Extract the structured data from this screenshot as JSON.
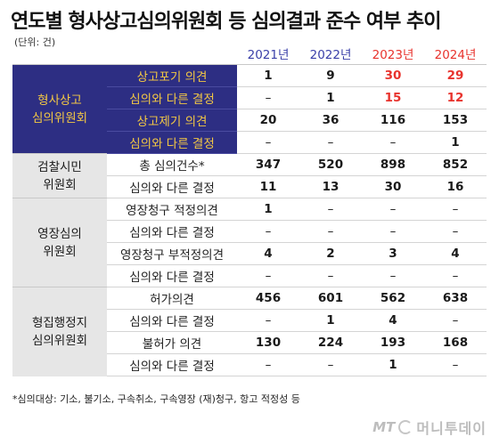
{
  "title": "연도별 형사상고심의위원회 등 심의결과 준수 여부 추이",
  "unit": "(단위: 건)",
  "years": [
    "2021년",
    "2022년",
    "2023년",
    "2024년"
  ],
  "highlight_color": "#e8332d",
  "groups": [
    {
      "label": "형사상고\n심의위원회",
      "rows": [
        {
          "item": "상고포기 의견",
          "values": [
            "1",
            "9",
            "30",
            "29"
          ]
        },
        {
          "item": "심의와 다른 결정",
          "values": [
            "–",
            "1",
            "15",
            "12"
          ]
        },
        {
          "item": "상고제기 의견",
          "values": [
            "20",
            "36",
            "116",
            "153"
          ]
        },
        {
          "item": "심의와 다른 결정",
          "values": [
            "–",
            "–",
            "–",
            "1"
          ]
        }
      ]
    },
    {
      "label": "검찰시민\n위원회",
      "rows": [
        {
          "item": "총 심의건수*",
          "values": [
            "347",
            "520",
            "898",
            "852"
          ]
        },
        {
          "item": "심의와 다른 결정",
          "values": [
            "11",
            "13",
            "30",
            "16"
          ]
        }
      ]
    },
    {
      "label": "영장심의\n위원회",
      "rows": [
        {
          "item": "영장청구 적정의견",
          "values": [
            "1",
            "–",
            "–",
            "–"
          ]
        },
        {
          "item": "심의와 다른 결정",
          "values": [
            "–",
            "–",
            "–",
            "–"
          ]
        },
        {
          "item": "영장청구 부적정의견",
          "values": [
            "4",
            "2",
            "3",
            "4"
          ]
        },
        {
          "item": "심의와 다른 결정",
          "values": [
            "–",
            "–",
            "–",
            "–"
          ]
        }
      ]
    },
    {
      "label": "형집행정지\n심의위원회",
      "rows": [
        {
          "item": "허가의견",
          "values": [
            "456",
            "601",
            "562",
            "638"
          ]
        },
        {
          "item": "심의와 다른 결정",
          "values": [
            "–",
            "1",
            "4",
            "–"
          ]
        },
        {
          "item": "불허가 의견",
          "values": [
            "130",
            "224",
            "193",
            "168"
          ]
        },
        {
          "item": "심의와 다른 결정",
          "values": [
            "–",
            "–",
            "1",
            "–"
          ]
        }
      ]
    }
  ],
  "footnote": "*심의대상: 기소, 불기소, 구속취소, 구속영장 (재)청구, 항고 적정성 등",
  "logo": {
    "mark": "MT",
    "name": "머니투데이"
  }
}
